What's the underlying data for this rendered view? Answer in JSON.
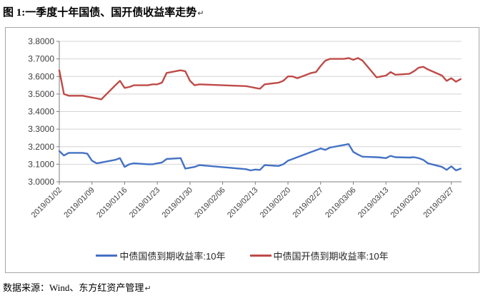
{
  "document": {
    "title": "图 1:一季度十年国债、国开债收益率走势",
    "paragraph_mark": "↵",
    "source": "数据来源：Wind、东方红资产管理"
  },
  "chart_data": {
    "type": "line",
    "title": "",
    "grid": {
      "horizontal": true,
      "vertical": false
    },
    "legend_position": "bottom",
    "colors": {
      "gridline": "#D4D4D4",
      "axis": "#7F7F7F",
      "tick_text": "#3F3F3F",
      "frame": "#A6A6A6"
    },
    "y_axis": {
      "min": 3.0,
      "max": 3.8,
      "tick_step": 0.1,
      "tick_labels": [
        "3.0000",
        "3.1000",
        "3.2000",
        "3.3000",
        "3.4000",
        "3.5000",
        "3.6000",
        "3.7000",
        "3.8000"
      ]
    },
    "x_axis": {
      "start": "2019/01/02",
      "end": "2019/03/29",
      "tick_interval_days": 7,
      "tick_labels": [
        "2019/01/02",
        "2019/01/09",
        "2019/01/16",
        "2019/01/23",
        "2019/01/30",
        "2019/02/06",
        "2019/02/13",
        "2019/02/20",
        "2019/02/27",
        "2019/03/06",
        "2019/03/13",
        "2019/03/20",
        "2019/03/27"
      ]
    },
    "dates": [
      "2019/01/02",
      "2019/01/03",
      "2019/01/04",
      "2019/01/07",
      "2019/01/08",
      "2019/01/09",
      "2019/01/10",
      "2019/01/11",
      "2019/01/14",
      "2019/01/15",
      "2019/01/16",
      "2019/01/17",
      "2019/01/18",
      "2019/01/21",
      "2019/01/22",
      "2019/01/23",
      "2019/01/24",
      "2019/01/25",
      "2019/01/28",
      "2019/01/29",
      "2019/01/30",
      "2019/01/31",
      "2019/02/01",
      "2019/02/11",
      "2019/02/12",
      "2019/02/13",
      "2019/02/14",
      "2019/02/15",
      "2019/02/18",
      "2019/02/19",
      "2019/02/20",
      "2019/02/21",
      "2019/02/22",
      "2019/02/25",
      "2019/02/26",
      "2019/02/27",
      "2019/02/28",
      "2019/03/01",
      "2019/03/04",
      "2019/03/05",
      "2019/03/06",
      "2019/03/07",
      "2019/03/08",
      "2019/03/11",
      "2019/03/12",
      "2019/03/13",
      "2019/03/14",
      "2019/03/15",
      "2019/03/18",
      "2019/03/19",
      "2019/03/20",
      "2019/03/21",
      "2019/03/22",
      "2019/03/25",
      "2019/03/26",
      "2019/03/27",
      "2019/03/28",
      "2019/03/29"
    ],
    "series": [
      {
        "name": "中债国债到期收益率:10年",
        "color": "#4472C4",
        "values": [
          3.175,
          3.15,
          3.165,
          3.165,
          3.16,
          3.12,
          3.105,
          3.11,
          3.125,
          3.135,
          3.085,
          3.1,
          3.105,
          3.1,
          3.1,
          3.105,
          3.11,
          3.13,
          3.135,
          3.075,
          3.08,
          3.085,
          3.095,
          3.072,
          3.065,
          3.07,
          3.068,
          3.095,
          3.09,
          3.1,
          3.12,
          3.13,
          3.14,
          3.17,
          3.18,
          3.19,
          3.182,
          3.195,
          3.21,
          3.215,
          3.17,
          3.155,
          3.143,
          3.14,
          3.138,
          3.135,
          3.148,
          3.14,
          3.138,
          3.14,
          3.135,
          3.125,
          3.105,
          3.085,
          3.068,
          3.088,
          3.065,
          3.075
        ]
      },
      {
        "name": "中债国开债到期收益率:10年",
        "color": "#BE4B48",
        "values": [
          3.635,
          3.5,
          3.49,
          3.49,
          3.485,
          3.48,
          3.475,
          3.47,
          3.55,
          3.575,
          3.535,
          3.54,
          3.55,
          3.55,
          3.555,
          3.555,
          3.565,
          3.62,
          3.635,
          3.63,
          3.575,
          3.55,
          3.555,
          3.545,
          3.54,
          3.535,
          3.53,
          3.555,
          3.565,
          3.575,
          3.6,
          3.6,
          3.59,
          3.62,
          3.625,
          3.66,
          3.69,
          3.7,
          3.7,
          3.705,
          3.695,
          3.705,
          3.69,
          3.595,
          3.6,
          3.605,
          3.625,
          3.61,
          3.615,
          3.63,
          3.65,
          3.655,
          3.64,
          3.605,
          3.575,
          3.59,
          3.57,
          3.585
        ]
      }
    ]
  }
}
